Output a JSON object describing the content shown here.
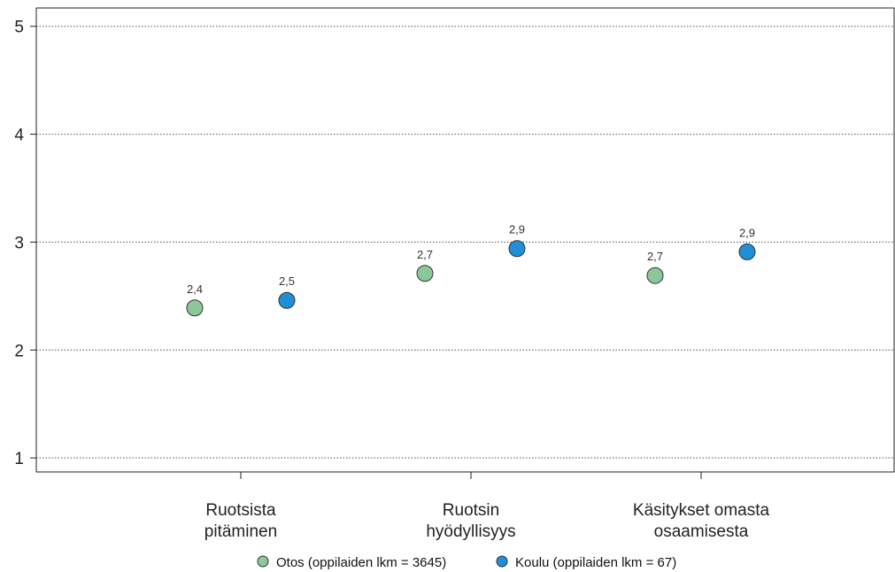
{
  "chart_data": {
    "type": "scatter",
    "categories": [
      [
        "Ruotsista",
        "pitäminen"
      ],
      [
        "Ruotsin",
        "hyödyllisyys"
      ],
      [
        "Käsitykset omasta",
        "osaamisesta"
      ]
    ],
    "series": [
      {
        "name": "Otos (oppilaiden lkm = 3645)",
        "color": "#8cc79a",
        "values": [
          2.39,
          2.71,
          2.69
        ],
        "labels": [
          "2,4",
          "2,7",
          "2,7"
        ]
      },
      {
        "name": "Koulu (oppilaiden lkm = 67)",
        "color": "#1f8fd6",
        "values": [
          2.46,
          2.94,
          2.91
        ],
        "labels": [
          "2,5",
          "2,9",
          "2,9"
        ]
      }
    ],
    "ylim": [
      0.87,
      5.17
    ],
    "yticks": [
      "1",
      "2",
      "3",
      "4",
      "5"
    ],
    "grid": true,
    "legend": "bottom"
  }
}
